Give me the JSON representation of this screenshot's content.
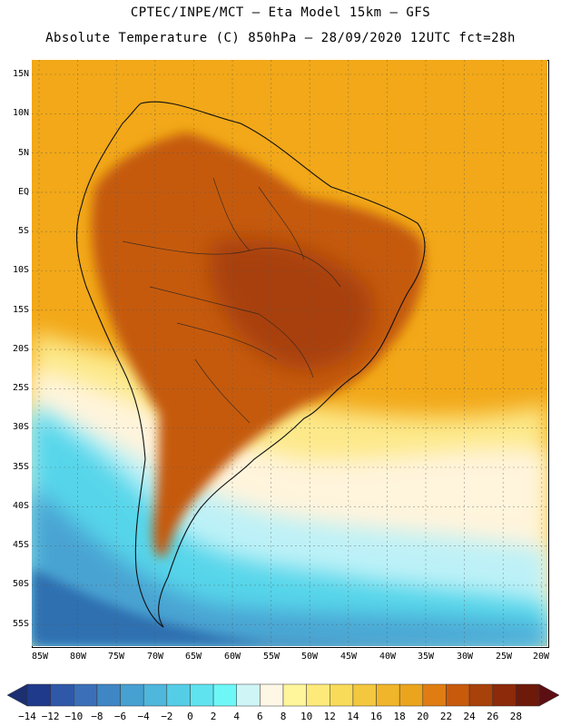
{
  "title_line1": "CPTEC/INPE/MCT –   Eta Model 15km – GFS",
  "title_line2": "Absolute Temperature (C) 850hPa – 28/09/2020 12UTC fct=28h",
  "lat_labels": [
    "15N",
    "10N",
    "5N",
    "EQ",
    "5S",
    "10S",
    "15S",
    "20S",
    "25S",
    "30S",
    "35S",
    "40S",
    "45S",
    "50S",
    "55S"
  ],
  "lon_labels": [
    "85W",
    "80W",
    "75W",
    "70W",
    "65W",
    "60W",
    "55W",
    "50W",
    "45W",
    "40W",
    "35W",
    "30W",
    "25W",
    "20W"
  ],
  "colorbar": {
    "labels": [
      "-14",
      "-12",
      "-10",
      "-8",
      "-6",
      "-4",
      "-2",
      "0",
      "2",
      "4",
      "6",
      "8",
      "10",
      "12",
      "14",
      "16",
      "18",
      "20",
      "22",
      "24",
      "26",
      "28"
    ],
    "colors": [
      "#1f3a8a",
      "#2f58a8",
      "#3b6fb8",
      "#3f86c4",
      "#46a0d1",
      "#4fb6dc",
      "#55cde6",
      "#5fe3ef",
      "#6ef7f7",
      "#cff5f7",
      "#fff7e6",
      "#fff59a",
      "#fdea7a",
      "#f9db5a",
      "#f3c73e",
      "#f0b52a",
      "#eaa41e",
      "#e07d12",
      "#c85a0c",
      "#a8410a",
      "#8c2a0a",
      "#6e1a0a"
    ],
    "low_color": "#1b2f72",
    "high_color": "#5c0f12"
  },
  "map": {
    "ocean_warm": "#f2a818",
    "land_hot": "#c55a10",
    "land_hotter": "#a8410a",
    "south_cool": "#fde98a",
    "pale": "#fff4dc",
    "cyan": "#56d5ea",
    "light_cyan": "#bdf1f7",
    "blue": "#4aa3d2",
    "deep_blue": "#2f6fb0"
  }
}
